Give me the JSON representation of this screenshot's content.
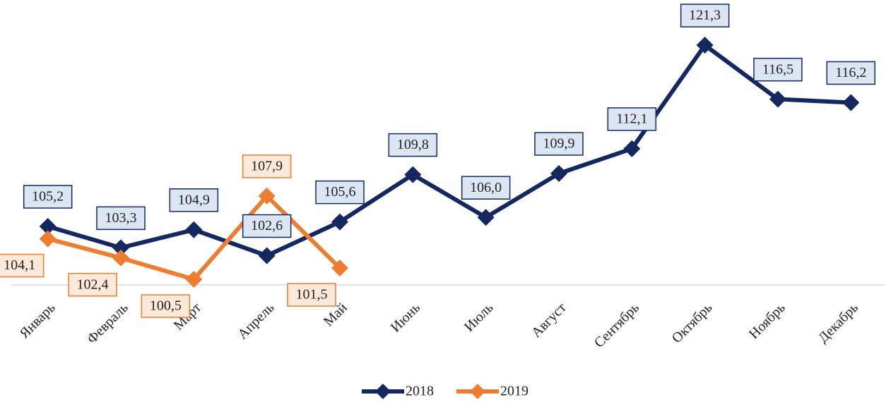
{
  "chart_data": {
    "type": "line",
    "categories": [
      "Январь",
      "Февраль",
      "Март",
      "Апрель",
      "Май",
      "Июнь",
      "Июль",
      "Август",
      "Сентябрь",
      "Октябрь",
      "Ноябрь",
      "Декабрь"
    ],
    "series": [
      {
        "name": "2018",
        "color": "#14275e",
        "values": [
          105.2,
          103.3,
          104.9,
          102.6,
          105.6,
          109.8,
          106.0,
          109.9,
          112.1,
          121.3,
          116.5,
          116.2
        ],
        "value_labels": [
          "105,2",
          "103,3",
          "104,9",
          "102,6",
          "105,6",
          "109,8",
          "106,0",
          "109,9",
          "112,1",
          "121,3",
          "116,5",
          "116,2"
        ]
      },
      {
        "name": "2019",
        "color": "#ed7d31",
        "values": [
          104.1,
          102.4,
          100.5,
          107.9,
          101.5,
          null,
          null,
          null,
          null,
          null,
          null,
          null
        ],
        "value_labels": [
          "104,1",
          "102,4",
          "100,5",
          "107,9",
          "101,5",
          null,
          null,
          null,
          null,
          null,
          null,
          null
        ]
      }
    ],
    "ylim": [
      100,
      125
    ],
    "legend": "bottom"
  }
}
